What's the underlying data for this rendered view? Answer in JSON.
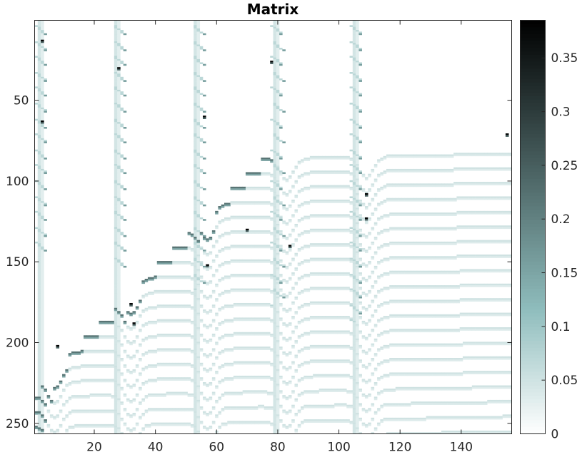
{
  "chart_data": {
    "type": "heatmap",
    "title": "Matrix",
    "xlabel": "",
    "ylabel": "",
    "x_range": [
      0.5,
      156.5
    ],
    "y_range": [
      0.5,
      256.5
    ],
    "x_ticks": [
      20,
      40,
      60,
      80,
      100,
      120,
      140
    ],
    "y_ticks": [
      50,
      100,
      150,
      200,
      250
    ],
    "colorbar": {
      "range": [
        0,
        0.385
      ],
      "ticks": [
        0,
        0.05,
        0.1,
        0.15,
        0.2,
        0.25,
        0.3,
        0.35
      ],
      "tick_labels": [
        "0",
        "0.05",
        "0.1",
        "0.15",
        "0.2",
        "0.25",
        "0.3",
        "0.35"
      ],
      "colormap": "bone (reversed)",
      "color_low": "#ffffff",
      "color_mid": "#8fbdbd",
      "color_high": "#000000"
    },
    "grid": false,
    "pattern_note_values": {
      "vertical_band_columns": [
        2,
        27,
        53,
        79,
        105
      ],
      "trough_columns": [
        7,
        32,
        57,
        83,
        109
      ],
      "peak_value": 0.38
    }
  }
}
